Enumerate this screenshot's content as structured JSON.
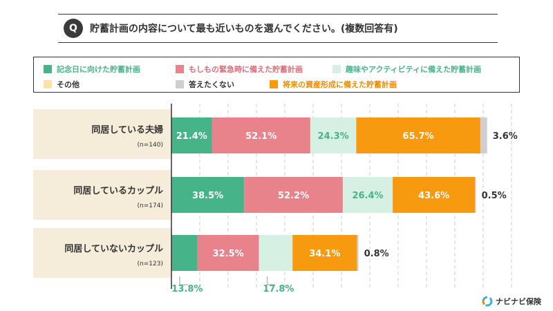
{
  "title": {
    "badge": "Q",
    "text": "貯蓄計画の内容について最も近いものを選んでください。(複数回答有)"
  },
  "legend": [
    {
      "label": "記念日に向けた貯蓄計画",
      "color": "#46b389",
      "text_color": "#46b389"
    },
    {
      "label": "もしもの緊急時に備えた貯蓄計画",
      "color": "#e8838b",
      "text_color": "#e06c78"
    },
    {
      "label": "趣味やアクティビティに備えた貯蓄計画",
      "color": "#d7f0e4",
      "text_color": "#46b389"
    },
    {
      "label": "その他",
      "color": "#fbe3a8",
      "text_color": "#333333"
    },
    {
      "label": "答えたくない",
      "color": "#cfcfcf",
      "text_color": "#333333"
    },
    {
      "label": "将来の資産形成に備えた貯蓄計画",
      "color": "#f89a10",
      "text_color": "#f08a00"
    }
  ],
  "chart_data": {
    "type": "bar",
    "orientation": "horizontal",
    "stacked": true,
    "title": "貯蓄計画の内容について最も近いものを選んでください。(複数回答有)",
    "categories": [
      {
        "label": "同居している夫婦",
        "n": "(n=140)"
      },
      {
        "label": "同居しているカップル",
        "n": "(n=174)"
      },
      {
        "label": "同居していないカップル",
        "n": "(n=123)"
      }
    ],
    "series": [
      {
        "name": "記念日に向けた貯蓄計画",
        "color": "#46b389",
        "label_color": "#ffffff",
        "values": [
          21.4,
          38.5,
          13.8
        ],
        "labels": [
          "21.4%",
          "38.5%",
          "13.8%"
        ]
      },
      {
        "name": "もしもの緊急時に備えた貯蓄計画",
        "color": "#e8838b",
        "label_color": "#ffffff",
        "values": [
          52.1,
          52.2,
          32.5
        ],
        "labels": [
          "52.1%",
          "52.2%",
          "32.5%"
        ]
      },
      {
        "name": "趣味やアクティビティに備えた貯蓄計画",
        "color": "#d7f0e4",
        "label_color": "#46b389",
        "values": [
          24.3,
          26.4,
          17.8
        ],
        "labels": [
          "24.3%",
          "26.4%",
          "17.8%"
        ]
      },
      {
        "name": "将来の資産形成に備えた貯蓄計画",
        "color": "#f89a10",
        "label_color": "#ffffff",
        "values": [
          65.7,
          43.6,
          34.1
        ],
        "labels": [
          "65.7%",
          "43.6%",
          "34.1%"
        ]
      },
      {
        "name": "答えたくない",
        "color": "#cfcfcf",
        "label_color": "#333333",
        "values": [
          3.6,
          0.5,
          0.8
        ],
        "labels": [
          "3.6%",
          "0.5%",
          "0.8%"
        ]
      }
    ],
    "outside_label_series": [
      "答えたくない"
    ],
    "callout_labels": [
      {
        "row": 2,
        "series": "記念日に向けた貯蓄計画"
      },
      {
        "row": 2,
        "series": "趣味やアクティビティに備えた貯蓄計画"
      }
    ],
    "xlim": [
      0,
      180
    ],
    "grid": true
  },
  "brand": {
    "name": "ナビナビ保険"
  }
}
